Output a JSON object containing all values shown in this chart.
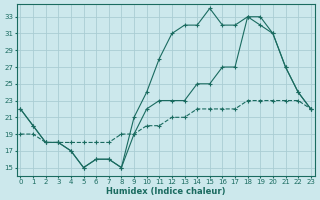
{
  "xlabel": "Humidex (Indice chaleur)",
  "background_color": "#cce8ec",
  "grid_color": "#aacdd3",
  "line_color": "#1a6b60",
  "x_ticks": [
    0,
    1,
    2,
    3,
    4,
    5,
    6,
    7,
    8,
    9,
    10,
    11,
    12,
    13,
    14,
    15,
    16,
    17,
    18,
    19,
    20,
    21,
    22,
    23
  ],
  "y_ticks": [
    15,
    17,
    19,
    21,
    23,
    25,
    27,
    29,
    31,
    33
  ],
  "xlim": [
    -0.3,
    23.3
  ],
  "ylim": [
    14.0,
    34.5
  ],
  "line1_x": [
    0,
    1,
    2,
    3,
    4,
    5,
    6,
    7,
    8,
    9,
    10,
    11,
    12,
    13,
    14,
    15,
    16,
    17,
    18,
    19,
    20,
    21,
    22,
    23
  ],
  "line1_y": [
    22,
    20,
    18,
    18,
    17,
    15,
    16,
    16,
    15,
    21,
    24,
    28,
    31,
    32,
    32,
    34,
    32,
    32,
    33,
    33,
    31,
    27,
    24,
    22
  ],
  "line2_x": [
    0,
    1,
    2,
    3,
    4,
    5,
    6,
    7,
    8,
    9,
    10,
    11,
    12,
    13,
    14,
    15,
    16,
    17,
    18,
    19,
    20,
    21,
    22,
    23
  ],
  "line2_y": [
    19,
    19,
    18,
    18,
    18,
    18,
    18,
    18,
    19,
    19,
    20,
    20,
    21,
    21,
    22,
    22,
    22,
    22,
    23,
    23,
    23,
    23,
    23,
    22
  ],
  "line3_x": [
    0,
    1,
    2,
    3,
    4,
    5,
    6,
    7,
    8,
    9,
    10,
    11,
    12,
    13,
    14,
    15,
    16,
    17,
    18,
    19,
    20,
    21,
    22,
    23
  ],
  "line3_y": [
    22,
    20,
    18,
    18,
    17,
    15,
    16,
    16,
    15,
    19,
    22,
    23,
    23,
    23,
    25,
    25,
    27,
    27,
    33,
    32,
    31,
    27,
    24,
    22
  ]
}
